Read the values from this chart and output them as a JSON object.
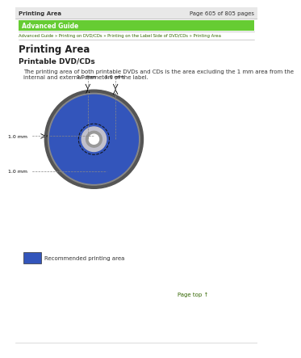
{
  "page_title": "Printing Area",
  "page_num": "Page 605 of 805 pages",
  "banner_text": "Advanced Guide",
  "banner_bg": "#66cc33",
  "banner_text_color": "#ffffff",
  "breadcrumb": "Advanced Guide » Printing on DVD/CDs » Printing on the Label Side of DVD/CDs » Printing Area",
  "breadcrumb_color": "#336600",
  "section_title": "Printing Area",
  "subsection_title": "Printable DVD/CDs",
  "body_text_1": "The printing area of both printable DVDs and CDs is the area excluding the 1 mm area from the",
  "body_text_2": "internal and external diameters of the label.",
  "legend_text": "Recommended printing area",
  "legend_color": "#3355bb",
  "page_top_text": "Page top ↑",
  "page_top_color": "#336600",
  "bg_color": "#ffffff",
  "header_bg": "#e8e8e8",
  "body_text_fontsize": 5.0,
  "title_fontsize": 8.5,
  "subtitle_fontsize": 6.5,
  "cd_outer_color": "#3355bb",
  "cd_rim_color": "#555555",
  "cd_hub_color": "#c0c0cc",
  "cd_hub_inner_color": "#999999",
  "cd_hole_color": "#ffffff"
}
